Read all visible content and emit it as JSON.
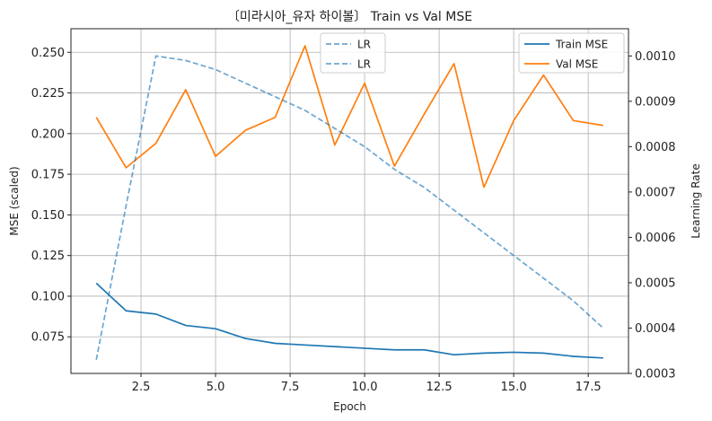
{
  "chart_data": {
    "type": "line",
    "title": "〔미라시아_유자 하이볼〕 Train vs Val MSE",
    "xlabel": "Epoch",
    "ylabel": "MSE (scaled)",
    "y2label": "Learning Rate",
    "xlim": [
      0.15,
      18.85
    ],
    "ylim": [
      0.0525,
      0.2645
    ],
    "y2lim": [
      0.0003,
      0.00106
    ],
    "grid": true,
    "x": [
      1,
      2,
      3,
      4,
      5,
      6,
      7,
      8,
      9,
      10,
      11,
      12,
      13,
      14,
      15,
      16,
      17,
      18
    ],
    "xticks": [
      "2.5",
      "5.0",
      "7.5",
      "10.0",
      "12.5",
      "15.0",
      "17.5"
    ],
    "xtick_values": [
      2.5,
      5.0,
      7.5,
      10.0,
      12.5,
      15.0,
      17.5
    ],
    "yticks": [
      "0.075",
      "0.100",
      "0.125",
      "0.150",
      "0.175",
      "0.200",
      "0.225",
      "0.250"
    ],
    "ytick_values": [
      0.075,
      0.1,
      0.125,
      0.15,
      0.175,
      0.2,
      0.225,
      0.25
    ],
    "y2ticks": [
      "0.0003",
      "0.0004",
      "0.0005",
      "0.0006",
      "0.0007",
      "0.0008",
      "0.0009",
      "0.0010"
    ],
    "y2tick_values": [
      0.0003,
      0.0004,
      0.0005,
      0.0006,
      0.0007,
      0.0008,
      0.0009,
      0.001
    ],
    "series": [
      {
        "name": "Train MSE",
        "axis": "left",
        "color": "#1f77b4",
        "style": "solid",
        "values": [
          0.108,
          0.091,
          0.089,
          0.082,
          0.08,
          0.074,
          0.071,
          0.07,
          0.069,
          0.068,
          0.067,
          0.067,
          0.064,
          0.065,
          0.0655,
          0.065,
          0.063,
          0.062
        ]
      },
      {
        "name": "Val MSE",
        "axis": "left",
        "color": "#ff7f0e",
        "style": "solid",
        "values": [
          0.21,
          0.179,
          0.194,
          0.227,
          0.186,
          0.202,
          0.21,
          0.254,
          0.193,
          0.231,
          0.18,
          0.212,
          0.243,
          0.167,
          0.208,
          0.236,
          0.208,
          0.205
        ]
      },
      {
        "name": "LR",
        "axis": "right",
        "color": "#1f77b4",
        "style": "dashed",
        "values": [
          0.00033,
          0.00067,
          0.001,
          0.00099,
          0.00097,
          0.00094,
          0.00091,
          0.00088,
          0.00084,
          0.0008,
          0.00075,
          0.00071,
          0.00066,
          0.00061,
          0.00056,
          0.00051,
          0.00046,
          0.0004
        ]
      }
    ],
    "legends": [
      {
        "placement": "top-center",
        "entries": [
          "LR",
          "LR"
        ]
      },
      {
        "placement": "top-right",
        "entries": [
          "Train MSE",
          "Val MSE"
        ]
      }
    ]
  }
}
